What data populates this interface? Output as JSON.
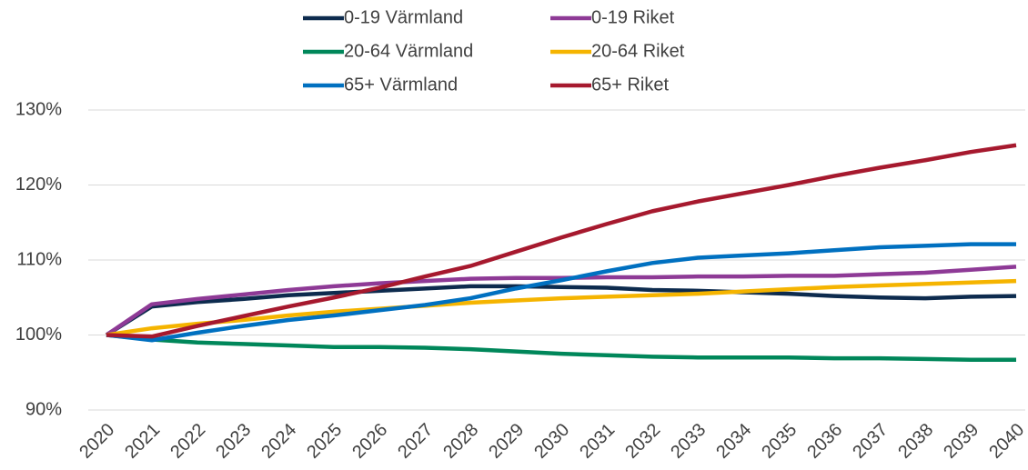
{
  "chart_data": {
    "type": "line",
    "categories": [
      "2020",
      "2021",
      "2022",
      "2023",
      "2024",
      "2025",
      "2026",
      "2027",
      "2028",
      "2029",
      "2030",
      "2031",
      "2032",
      "2033",
      "2034",
      "2035",
      "2036",
      "2037",
      "2038",
      "2039",
      "2040"
    ],
    "series": [
      {
        "name": "0-19 Värmland",
        "color": "#0d2b4e",
        "values": [
          100,
          103.8,
          104.4,
          104.8,
          105.3,
          105.6,
          105.9,
          106.2,
          106.5,
          106.5,
          106.4,
          106.3,
          106.0,
          105.9,
          105.7,
          105.5,
          105.2,
          105.0,
          104.9,
          105.1,
          105.2
        ]
      },
      {
        "name": "0-19 Riket",
        "color": "#8e3a96",
        "values": [
          100,
          104.1,
          104.8,
          105.4,
          106.0,
          106.5,
          106.9,
          107.2,
          107.5,
          107.6,
          107.6,
          107.7,
          107.7,
          107.8,
          107.8,
          107.9,
          107.9,
          108.1,
          108.3,
          108.7,
          109.1
        ]
      },
      {
        "name": "20-64 Värmland",
        "color": "#00875a",
        "values": [
          100,
          99.4,
          99.0,
          98.8,
          98.6,
          98.4,
          98.4,
          98.3,
          98.1,
          97.8,
          97.5,
          97.3,
          97.1,
          97.0,
          97.0,
          97.0,
          96.9,
          96.9,
          96.8,
          96.7,
          96.7
        ]
      },
      {
        "name": "20-64 Riket",
        "color": "#f5b400",
        "values": [
          100,
          100.9,
          101.5,
          102.0,
          102.6,
          103.1,
          103.5,
          103.9,
          104.3,
          104.6,
          104.9,
          105.1,
          105.3,
          105.5,
          105.8,
          106.1,
          106.4,
          106.6,
          106.8,
          107.0,
          107.2
        ]
      },
      {
        "name": "65+ Värmland",
        "color": "#0070c0",
        "values": [
          100,
          99.3,
          100.3,
          101.2,
          102.0,
          102.6,
          103.3,
          104.0,
          104.9,
          106.2,
          107.3,
          108.5,
          109.6,
          110.3,
          110.6,
          110.9,
          111.3,
          111.7,
          111.9,
          112.1,
          112.1
        ]
      },
      {
        "name": "65+ Riket",
        "color": "#a6192e",
        "values": [
          100,
          99.8,
          101.2,
          102.5,
          103.8,
          105.0,
          106.3,
          107.8,
          109.2,
          111.1,
          113.0,
          114.8,
          116.5,
          117.8,
          118.9,
          120.0,
          121.2,
          122.3,
          123.3,
          124.4,
          125.3
        ]
      }
    ],
    "ylim": [
      90,
      130
    ],
    "yticks": [
      {
        "value": 90,
        "label": "90%"
      },
      {
        "value": 100,
        "label": "100%"
      },
      {
        "value": 110,
        "label": "110%"
      },
      {
        "value": 120,
        "label": "120%"
      },
      {
        "value": 130,
        "label": "130%"
      }
    ],
    "grid": true,
    "legend": "top"
  }
}
